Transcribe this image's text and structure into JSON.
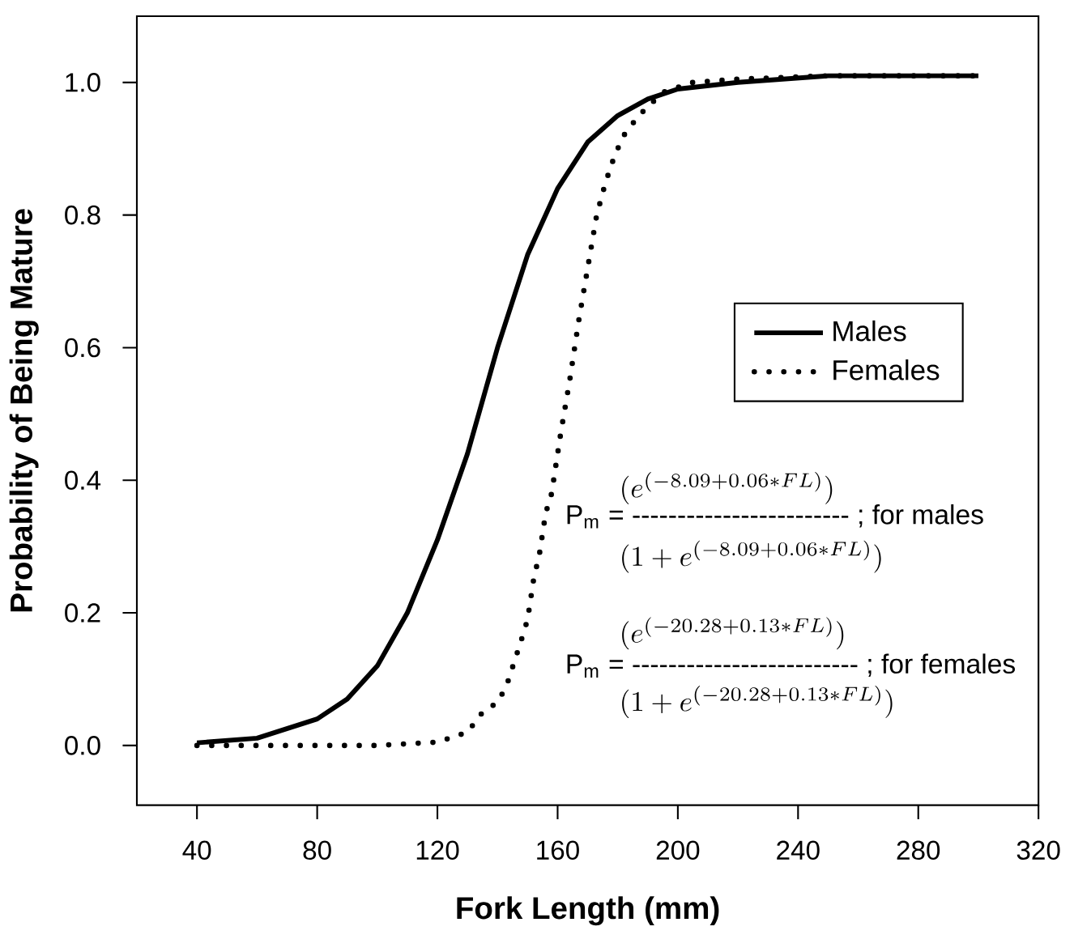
{
  "chart_data": {
    "type": "line",
    "xlabel": "Fork Length (mm)",
    "ylabel": "Probability of Being Mature",
    "xlim": [
      20,
      320
    ],
    "ylim": [
      -0.09,
      1.1
    ],
    "xticks": [
      40,
      80,
      120,
      160,
      200,
      240,
      280,
      320
    ],
    "yticks": [
      {
        "value": 0,
        "label": "0.0"
      },
      {
        "value": 0.2,
        "label": "0.2"
      },
      {
        "value": 0.4,
        "label": "0.4"
      },
      {
        "value": 0.6,
        "label": "0.6"
      },
      {
        "value": 0.8,
        "label": "0.8"
      },
      {
        "value": 1.0,
        "label": "1.0"
      }
    ],
    "legend": "right",
    "series": [
      {
        "name": "Males",
        "color": "#000000",
        "line_style": "solid",
        "x": [
          40,
          60,
          80,
          90,
          100,
          110,
          120,
          130,
          140,
          150,
          160,
          170,
          180,
          190,
          200,
          220,
          250,
          300
        ],
        "values": [
          0.004,
          0.011,
          0.04,
          0.07,
          0.12,
          0.2,
          0.31,
          0.44,
          0.6,
          0.74,
          0.84,
          0.91,
          0.95,
          0.975,
          0.99,
          1.0,
          1.01,
          1.01
        ]
      },
      {
        "name": "Females",
        "color": "#000000",
        "line_style": "dotted",
        "x": [
          40,
          60,
          80,
          100,
          120,
          130,
          135,
          140,
          143,
          148,
          150,
          152,
          154,
          156,
          158,
          161,
          164,
          167,
          170,
          173,
          176,
          179,
          182,
          187,
          195,
          205,
          220,
          250,
          300
        ],
        "values": [
          0,
          0,
          0,
          0,
          0.005,
          0.02,
          0.05,
          0.065,
          0.09,
          0.16,
          0.19,
          0.25,
          0.29,
          0.35,
          0.38,
          0.47,
          0.55,
          0.64,
          0.72,
          0.8,
          0.85,
          0.89,
          0.92,
          0.95,
          0.985,
          1.0,
          1.005,
          1.01,
          1.01
        ]
      }
    ],
    "annotations": [
      "(e^{(-8.09+0.06*FL)})",
      "P$_{m}$ = ------------------------ ; for males",
      "(1+e^{(-8.09+0.06*FL)})",
      "(e^{(-20.28+0.13*FL)})",
      "P$_{m}$ = ------------------------- ;  for females",
      "(1+e^{(-20.28+0.13*FL)})"
    ]
  }
}
